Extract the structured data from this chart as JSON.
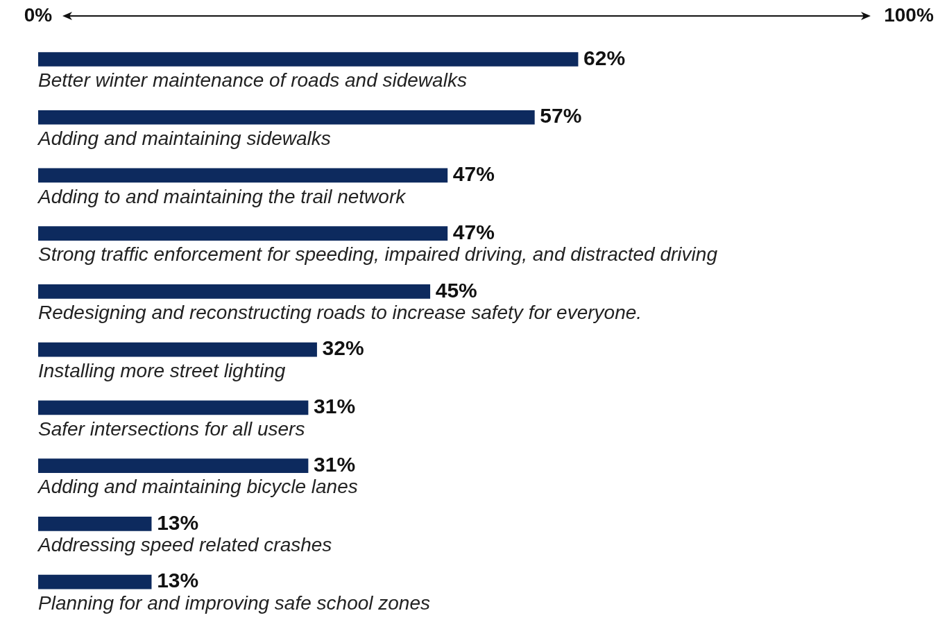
{
  "chart_data": {
    "type": "bar",
    "orientation": "horizontal",
    "categories": [
      "Better winter maintenance of roads and sidewalks",
      "Adding and maintaining sidewalks",
      "Adding to and maintaining the trail network",
      "Strong traffic enforcement for speeding, impaired driving, and distracted driving",
      "Redesigning and reconstructing roads to increase safety for everyone.",
      "Installing more street lighting",
      "Safer intersections for all users",
      "Adding and maintaining bicycle lanes",
      "Addressing speed related crashes",
      "Planning for and improving safe school zones"
    ],
    "values": [
      62,
      57,
      47,
      47,
      45,
      32,
      31,
      31,
      13,
      13
    ],
    "value_labels": [
      "62%",
      "57%",
      "47%",
      "47%",
      "45%",
      "32%",
      "31%",
      "31%",
      "13%",
      "13%"
    ],
    "color": "#0d2a5e",
    "xlim": [
      0,
      100
    ],
    "xticks": [
      {
        "value": 0,
        "label": "0%"
      },
      {
        "value": 100,
        "label": "100%"
      }
    ],
    "grid": false,
    "legend": false
  }
}
